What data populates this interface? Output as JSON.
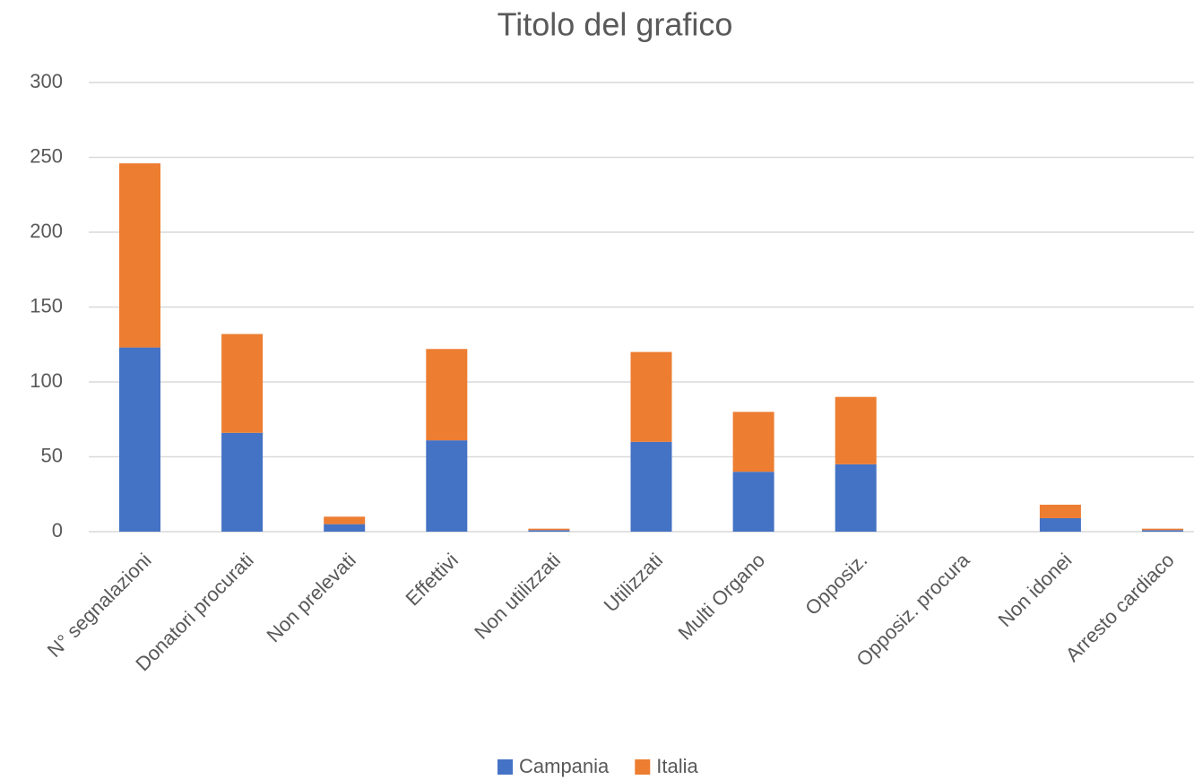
{
  "chart_data": {
    "type": "stacked_bar",
    "title": "Titolo del grafico",
    "categories": [
      "N° segnalazioni",
      "Donatori procurati",
      "Non prelevati",
      "Effettivi",
      "Non utilizzati",
      "Utilizzati",
      "Multi Organo",
      "Opposiz.",
      "Opposiz. procura",
      "Non idonei",
      "Arresto cardiaco"
    ],
    "series": [
      {
        "name": "Campania",
        "color": "#4472c4",
        "values": [
          123,
          66,
          5,
          61,
          1,
          60,
          40,
          45,
          0,
          9,
          1
        ]
      },
      {
        "name": "Italia",
        "color": "#ed7d31",
        "values": [
          123,
          66,
          5,
          61,
          1,
          60,
          40,
          45,
          0,
          9,
          1
        ]
      }
    ],
    "ylim": [
      0,
      300
    ],
    "yticks": [
      0,
      50,
      100,
      150,
      200,
      250,
      300
    ],
    "grid": true,
    "legend": "bottom"
  }
}
